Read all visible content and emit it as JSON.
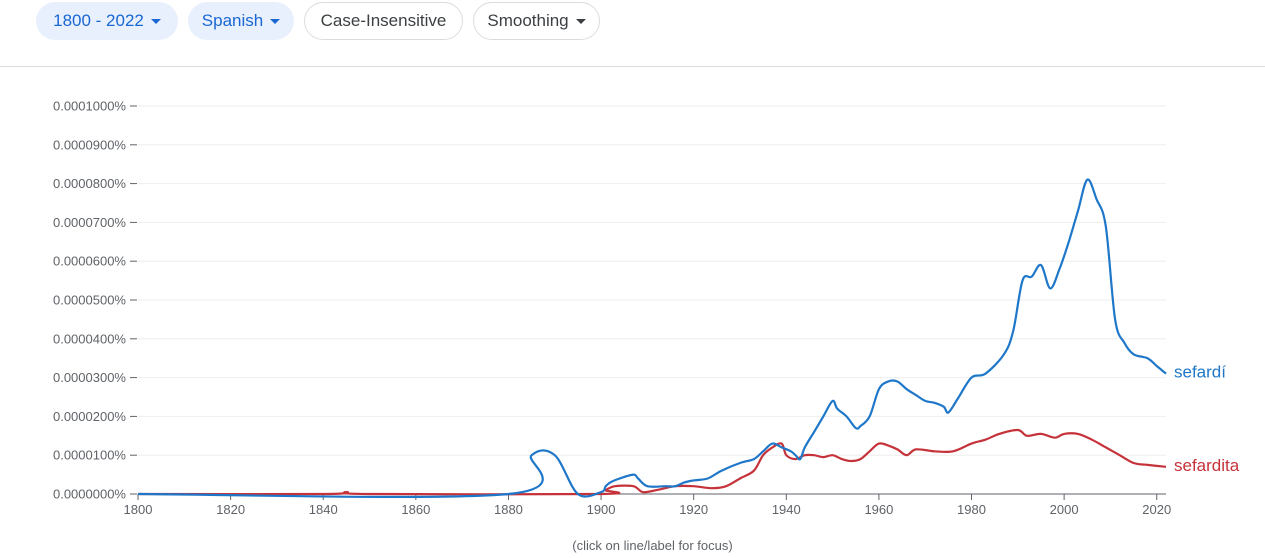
{
  "toolbar": {
    "year_range": "1800 - 2022",
    "corpus": "Spanish",
    "case_mode": "Case-Insensitive",
    "smoothing": "Smoothing"
  },
  "footnote": "(click on line/label for focus)",
  "chart_data": {
    "type": "line",
    "title": "",
    "xlabel": "",
    "ylabel": "",
    "xlim": [
      1800,
      2022
    ],
    "ylim": [
      0,
      1e-06
    ],
    "grid": true,
    "x_ticks": [
      1800,
      1820,
      1840,
      1860,
      1880,
      1900,
      1920,
      1940,
      1960,
      1980,
      2000,
      2020
    ],
    "x_tick_labels": [
      "1800",
      "1820",
      "1840",
      "1860",
      "1880",
      "1900",
      "1920",
      "1940",
      "1960",
      "1980",
      "2000",
      "2020"
    ],
    "y_ticks": [
      0,
      1e-07,
      2e-07,
      3e-07,
      4e-07,
      5e-07,
      6e-07,
      7e-07,
      8e-07,
      9e-07,
      1e-06
    ],
    "y_tick_labels": [
      "0.0000000%",
      "0.0000100%",
      "0.0000200%",
      "0.0000300%",
      "0.0000400%",
      "0.0000500%",
      "0.0000600%",
      "0.0000700%",
      "0.0000800%",
      "0.0000900%",
      "0.0001000%"
    ],
    "series": [
      {
        "name": "sefardí",
        "color": "#1f77c9",
        "points": [
          [
            1800,
            0
          ],
          [
            1880,
            0
          ],
          [
            1885,
            1e-07
          ],
          [
            1890,
            1e-07
          ],
          [
            1895,
            0
          ],
          [
            1900,
            5e-09
          ],
          [
            1901,
            2e-08
          ],
          [
            1902,
            3e-08
          ],
          [
            1904,
            4e-08
          ],
          [
            1907,
            5e-08
          ],
          [
            1908,
            4e-08
          ],
          [
            1910,
            2e-08
          ],
          [
            1914,
            2e-08
          ],
          [
            1916,
            2e-08
          ],
          [
            1918,
            3e-08
          ],
          [
            1920,
            3.5e-08
          ],
          [
            1923,
            4e-08
          ],
          [
            1926,
            6e-08
          ],
          [
            1930,
            8e-08
          ],
          [
            1933,
            9e-08
          ],
          [
            1935,
            1.1e-07
          ],
          [
            1937,
            1.3e-07
          ],
          [
            1939,
            1.2e-07
          ],
          [
            1941,
            1.1e-07
          ],
          [
            1942,
            1e-07
          ],
          [
            1943,
            9e-08
          ],
          [
            1944,
            1.2e-07
          ],
          [
            1946,
            1.6e-07
          ],
          [
            1948,
            2e-07
          ],
          [
            1950,
            2.4e-07
          ],
          [
            1951,
            2.2e-07
          ],
          [
            1953,
            2e-07
          ],
          [
            1955,
            1.7e-07
          ],
          [
            1956,
            1.75e-07
          ],
          [
            1958,
            2e-07
          ],
          [
            1960,
            2.7e-07
          ],
          [
            1962,
            2.9e-07
          ],
          [
            1964,
            2.9e-07
          ],
          [
            1966,
            2.7e-07
          ],
          [
            1968,
            2.55e-07
          ],
          [
            1970,
            2.4e-07
          ],
          [
            1972,
            2.35e-07
          ],
          [
            1974,
            2.25e-07
          ],
          [
            1975,
            2.1e-07
          ],
          [
            1977,
            2.45e-07
          ],
          [
            1980,
            3e-07
          ],
          [
            1983,
            3.1e-07
          ],
          [
            1987,
            3.6e-07
          ],
          [
            1989,
            4.2e-07
          ],
          [
            1991,
            5.5e-07
          ],
          [
            1993,
            5.6e-07
          ],
          [
            1995,
            5.9e-07
          ],
          [
            1997,
            5.3e-07
          ],
          [
            1999,
            5.8e-07
          ],
          [
            2001,
            6.5e-07
          ],
          [
            2003,
            7.3e-07
          ],
          [
            2005,
            8.1e-07
          ],
          [
            2007,
            7.6e-07
          ],
          [
            2009,
            6.9e-07
          ],
          [
            2011,
            4.5e-07
          ],
          [
            2013,
            3.9e-07
          ],
          [
            2015,
            3.6e-07
          ],
          [
            2018,
            3.5e-07
          ],
          [
            2020,
            3.3e-07
          ],
          [
            2022,
            3.1e-07
          ]
        ]
      },
      {
        "name": "sefardita",
        "color": "#c5323a",
        "points": [
          [
            1800,
            0
          ],
          [
            1840,
            0
          ],
          [
            1845,
            5e-09
          ],
          [
            1850,
            0
          ],
          [
            1900,
            0
          ],
          [
            1901,
            1e-08
          ],
          [
            1903,
            2e-08
          ],
          [
            1907,
            2e-08
          ],
          [
            1909,
            5e-09
          ],
          [
            1912,
            1e-08
          ],
          [
            1916,
            2e-08
          ],
          [
            1920,
            2e-08
          ],
          [
            1924,
            1.5e-08
          ],
          [
            1927,
            2e-08
          ],
          [
            1930,
            4e-08
          ],
          [
            1933,
            6e-08
          ],
          [
            1935,
            1e-07
          ],
          [
            1937,
            1.2e-07
          ],
          [
            1939,
            1.3e-07
          ],
          [
            1940,
            1e-07
          ],
          [
            1942,
            9e-08
          ],
          [
            1944,
            1e-07
          ],
          [
            1946,
            1e-07
          ],
          [
            1948,
            9.5e-08
          ],
          [
            1950,
            1e-07
          ],
          [
            1952,
            9e-08
          ],
          [
            1954,
            8.5e-08
          ],
          [
            1956,
            9e-08
          ],
          [
            1958,
            1.1e-07
          ],
          [
            1960,
            1.3e-07
          ],
          [
            1962,
            1.25e-07
          ],
          [
            1964,
            1.15e-07
          ],
          [
            1966,
            1e-07
          ],
          [
            1968,
            1.15e-07
          ],
          [
            1972,
            1.1e-07
          ],
          [
            1976,
            1.1e-07
          ],
          [
            1980,
            1.3e-07
          ],
          [
            1983,
            1.4e-07
          ],
          [
            1986,
            1.55e-07
          ],
          [
            1990,
            1.65e-07
          ],
          [
            1992,
            1.5e-07
          ],
          [
            1995,
            1.55e-07
          ],
          [
            1998,
            1.45e-07
          ],
          [
            2000,
            1.55e-07
          ],
          [
            2003,
            1.55e-07
          ],
          [
            2006,
            1.4e-07
          ],
          [
            2009,
            1.2e-07
          ],
          [
            2012,
            1e-07
          ],
          [
            2015,
            8e-08
          ],
          [
            2018,
            7.5e-08
          ],
          [
            2022,
            7e-08
          ]
        ]
      }
    ]
  }
}
